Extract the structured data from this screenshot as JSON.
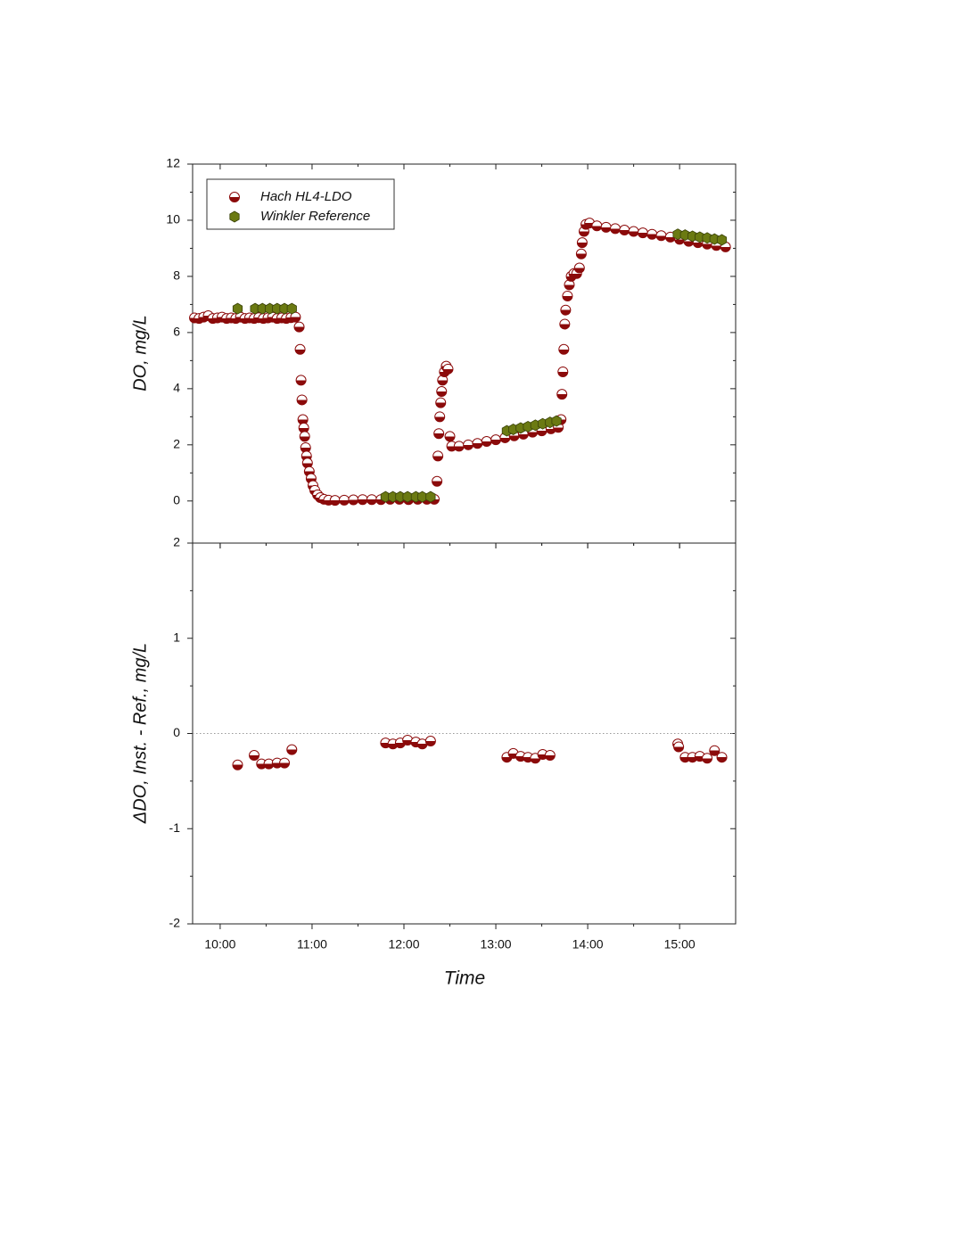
{
  "chart_data": [
    {
      "type": "scatter",
      "ylabel": "DO, mg/L",
      "xlim": [
        9.7,
        15.61
      ],
      "xticks": [
        10,
        11,
        12,
        13,
        14,
        15
      ],
      "ylim": [
        -1.5,
        12
      ],
      "yticks": [
        0,
        2,
        4,
        6,
        8,
        10,
        12
      ],
      "legend": "upper left",
      "series": [
        {
          "name": "Hach HL4-LDO",
          "color": "#8b0a0a",
          "marker": "circle",
          "x": [
            9.72,
            9.77,
            9.82,
            9.87,
            9.92,
            9.97,
            10.02,
            10.07,
            10.12,
            10.17,
            10.22,
            10.27,
            10.32,
            10.37,
            10.42,
            10.47,
            10.52,
            10.57,
            10.62,
            10.67,
            10.72,
            10.77,
            10.82,
            10.86,
            10.87,
            10.88,
            10.89,
            10.9,
            10.91,
            10.92,
            10.93,
            10.94,
            10.95,
            10.97,
            10.99,
            11.01,
            11.03,
            11.06,
            11.09,
            11.13,
            11.18,
            11.25,
            11.35,
            11.45,
            11.55,
            11.65,
            11.75,
            11.85,
            11.95,
            12.05,
            12.15,
            12.25,
            12.33,
            12.36,
            12.37,
            12.38,
            12.39,
            12.4,
            12.41,
            12.42,
            12.44,
            12.46,
            12.48,
            12.5,
            12.52,
            12.6,
            12.7,
            12.8,
            12.9,
            13.0,
            13.1,
            13.2,
            13.3,
            13.4,
            13.5,
            13.6,
            13.68,
            13.71,
            13.72,
            13.73,
            13.74,
            13.75,
            13.76,
            13.78,
            13.8,
            13.82,
            13.85,
            13.88,
            13.91,
            13.93,
            13.94,
            13.96,
            13.98,
            14.02,
            14.1,
            14.2,
            14.3,
            14.4,
            14.5,
            14.6,
            14.7,
            14.8,
            14.9,
            15.0,
            15.1,
            15.2,
            15.3,
            15.4,
            15.5
          ],
          "values": [
            6.52,
            6.5,
            6.55,
            6.6,
            6.5,
            6.52,
            6.55,
            6.5,
            6.52,
            6.5,
            6.55,
            6.5,
            6.52,
            6.5,
            6.53,
            6.5,
            6.52,
            6.55,
            6.5,
            6.52,
            6.5,
            6.53,
            6.55,
            6.2,
            5.4,
            4.3,
            3.6,
            2.9,
            2.6,
            2.3,
            1.9,
            1.6,
            1.35,
            1.05,
            0.8,
            0.55,
            0.38,
            0.22,
            0.12,
            0.06,
            0.03,
            0.02,
            0.03,
            0.04,
            0.05,
            0.05,
            0.05,
            0.06,
            0.06,
            0.05,
            0.06,
            0.06,
            0.06,
            0.7,
            1.6,
            2.4,
            3.0,
            3.5,
            3.9,
            4.3,
            4.6,
            4.8,
            4.7,
            2.3,
            1.95,
            1.95,
            2.0,
            2.05,
            2.12,
            2.18,
            2.25,
            2.32,
            2.38,
            2.45,
            2.5,
            2.57,
            2.62,
            2.9,
            3.8,
            4.6,
            5.4,
            6.3,
            6.8,
            7.3,
            7.7,
            8.0,
            8.1,
            8.1,
            8.3,
            8.8,
            9.2,
            9.6,
            9.85,
            9.9,
            9.8,
            9.75,
            9.7,
            9.65,
            9.6,
            9.55,
            9.5,
            9.45,
            9.4,
            9.32,
            9.25,
            9.2,
            9.15,
            9.1,
            9.05
          ]
        },
        {
          "name": "Winkler Reference",
          "color": "#6b7a12",
          "marker": "hexagon",
          "x": [
            10.19,
            10.38,
            10.46,
            10.54,
            10.62,
            10.7,
            10.78,
            11.8,
            11.88,
            11.96,
            12.04,
            12.13,
            12.2,
            12.29,
            13.12,
            13.19,
            13.27,
            13.35,
            13.43,
            13.51,
            13.59,
            13.66,
            14.98,
            15.06,
            15.14,
            15.22,
            15.3,
            15.38,
            15.46
          ],
          "values": [
            6.85,
            6.85,
            6.85,
            6.85,
            6.85,
            6.85,
            6.85,
            0.15,
            0.15,
            0.15,
            0.15,
            0.15,
            0.15,
            0.15,
            2.5,
            2.55,
            2.6,
            2.65,
            2.7,
            2.75,
            2.8,
            2.85,
            9.5,
            9.47,
            9.43,
            9.4,
            9.37,
            9.33,
            9.3
          ]
        }
      ]
    },
    {
      "type": "scatter",
      "ylabel": "ΔDO, Inst. - Ref., mg/L",
      "xlabel": "Time",
      "xlim": [
        9.7,
        15.61
      ],
      "xticks": [
        {
          "value": 10,
          "label": "10:00"
        },
        {
          "value": 11,
          "label": "11:00"
        },
        {
          "value": 12,
          "label": "12:00"
        },
        {
          "value": 13,
          "label": "13:00"
        },
        {
          "value": 14,
          "label": "14:00"
        },
        {
          "value": 15,
          "label": "15:00"
        }
      ],
      "ylim": [
        -2,
        2
      ],
      "yticks": [
        -2,
        -1,
        0,
        1,
        2
      ],
      "zero_line": true,
      "color": "#8b0a0a",
      "marker": "circle",
      "x": [
        10.19,
        10.37,
        10.45,
        10.53,
        10.62,
        10.7,
        10.78,
        11.8,
        11.88,
        11.96,
        12.04,
        12.13,
        12.2,
        12.29,
        13.12,
        13.19,
        13.27,
        13.35,
        13.43,
        13.51,
        13.59,
        14.98,
        14.99,
        15.06,
        15.14,
        15.22,
        15.3,
        15.38,
        15.46
      ],
      "values": [
        -0.33,
        -0.23,
        -0.32,
        -0.32,
        -0.31,
        -0.31,
        -0.17,
        -0.1,
        -0.11,
        -0.1,
        -0.07,
        -0.09,
        -0.11,
        -0.08,
        -0.25,
        -0.21,
        -0.24,
        -0.25,
        -0.26,
        -0.22,
        -0.23,
        -0.11,
        -0.14,
        -0.25,
        -0.25,
        -0.24,
        -0.26,
        -0.18,
        -0.25
      ]
    }
  ]
}
